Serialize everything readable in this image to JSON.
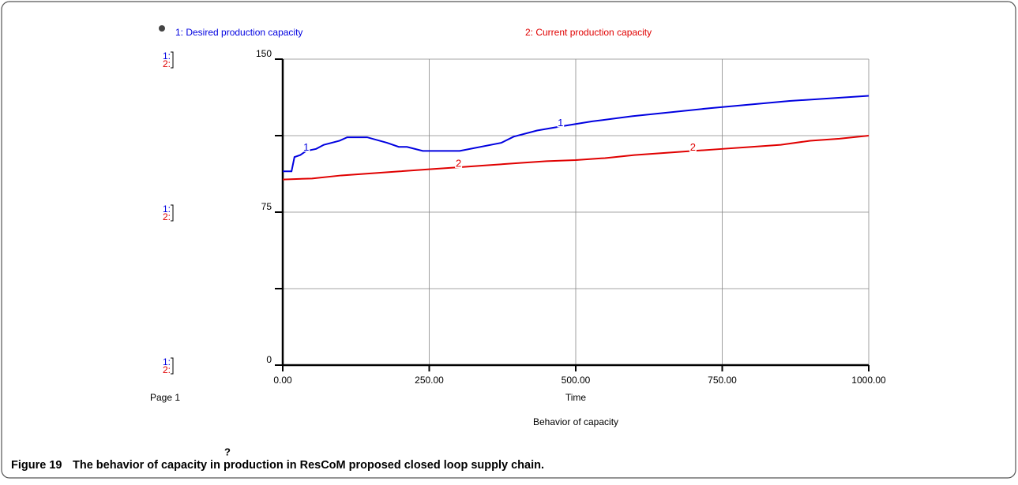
{
  "chart_data": {
    "type": "line",
    "subtitle": "Behavior of capacity",
    "xlabel": "Time",
    "page_label": "Page 1",
    "help_icon": "?",
    "scale_labels": [
      "1:",
      "2:"
    ],
    "caption_label": "Figure 19",
    "caption": "The behavior of capacity in production in ResCoM proposed closed loop supply chain.",
    "xlim": [
      0,
      1000
    ],
    "xticks": [
      {
        "value": 0,
        "label": "0.00"
      },
      {
        "value": 250,
        "label": "250.00"
      },
      {
        "value": 500,
        "label": "500.00"
      },
      {
        "value": 750,
        "label": "750.00"
      },
      {
        "value": 1000,
        "label": "1000.00"
      }
    ],
    "ylim": [
      0,
      150
    ],
    "yticks": [
      0,
      75,
      150
    ],
    "yticks_minor": [
      37.5,
      112.5
    ],
    "grid": true,
    "series": [
      {
        "name": "1: Desired production  capacity",
        "marker": "1",
        "color": "#0000e0",
        "x": [
          0,
          15,
          20,
          30,
          40,
          57,
          70,
          97,
          110,
          144,
          178,
          198,
          212,
          239,
          302,
          373,
          394,
          434,
          474,
          528,
          596,
          730,
          865,
          1000
        ],
        "values": [
          95,
          95,
          102,
          103,
          105,
          106,
          108,
          110,
          111.7,
          111.7,
          109,
          107,
          107,
          105,
          105,
          109,
          112,
          115,
          117,
          119.5,
          122,
          126,
          129.5,
          132
        ]
      },
      {
        "name": "2: Current production capacity",
        "marker": "2",
        "color": "#e00000",
        "x": [
          0,
          50,
          100,
          150,
          200,
          250,
          300,
          350,
          400,
          450,
          500,
          550,
          600,
          650,
          700,
          750,
          800,
          850,
          900,
          950,
          1000
        ],
        "values": [
          91,
          91.5,
          93,
          94,
          95,
          96,
          97,
          98,
          99,
          100,
          100.5,
          101.5,
          103,
          104,
          105,
          106,
          107,
          108,
          110,
          111,
          112.5
        ]
      }
    ]
  }
}
